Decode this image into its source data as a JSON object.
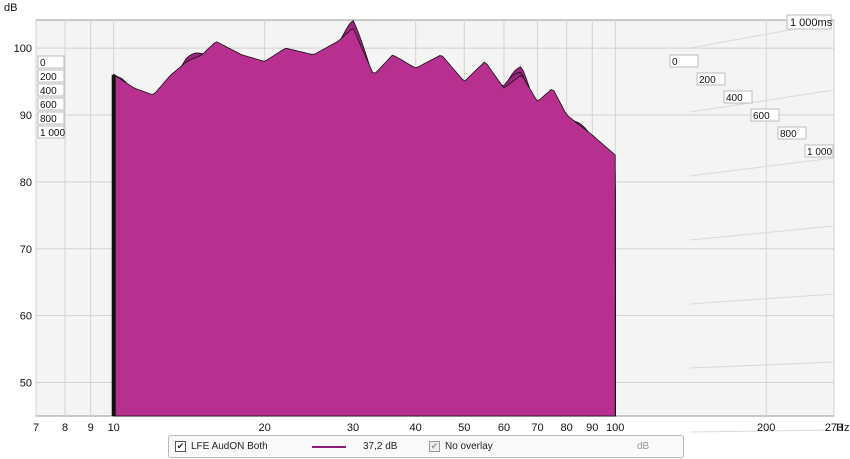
{
  "chart_data": {
    "type": "area",
    "title": "",
    "xlabel": "Hz",
    "ylabel": "dB",
    "x_ticks": [
      7,
      8,
      9,
      10,
      20,
      30,
      40,
      50,
      60,
      70,
      80,
      90,
      100,
      200,
      273
    ],
    "x_tick_labels": [
      "7",
      "8",
      "9",
      "10",
      "20",
      "30",
      "40",
      "50",
      "60",
      "70",
      "80",
      "90",
      "100",
      "200",
      "273"
    ],
    "x_unit_label": "Hz",
    "x_scale": "log",
    "xlim": [
      7,
      273
    ],
    "y_ticks": [
      50,
      60,
      70,
      80,
      90,
      100
    ],
    "ylim": [
      45,
      103
    ],
    "time_axis_label": "1 000ms",
    "time_slice_labels_left": [
      "0",
      "200",
      "400",
      "600",
      "800",
      "1 000"
    ],
    "time_slice_labels_right": [
      "0",
      "200",
      "400",
      "600",
      "800",
      "1 000"
    ],
    "grid": true,
    "fill_color": "#9c237f",
    "front_fill_color": "#b8308f",
    "series": [
      {
        "name": "LFE AudON Both",
        "time_ms": 0,
        "x": [
          10,
          11,
          12,
          13,
          14,
          15,
          16,
          18,
          20,
          22,
          25,
          28,
          30,
          33,
          36,
          40,
          45,
          50,
          55,
          60,
          65,
          70,
          75,
          80,
          90,
          100
        ],
        "values": [
          96,
          94,
          93,
          96,
          98,
          99,
          101,
          99,
          98,
          100,
          99,
          101,
          103,
          96,
          99,
          97,
          99,
          95,
          98,
          94,
          96,
          92,
          94,
          90,
          87,
          84
        ]
      }
    ]
  },
  "legend": {
    "series_label": "LFE AudON Both",
    "smoothing_label": "37,2 dB",
    "overlay_label": "No overlay",
    "unit_label": "dB",
    "checkbox_checked": true
  }
}
